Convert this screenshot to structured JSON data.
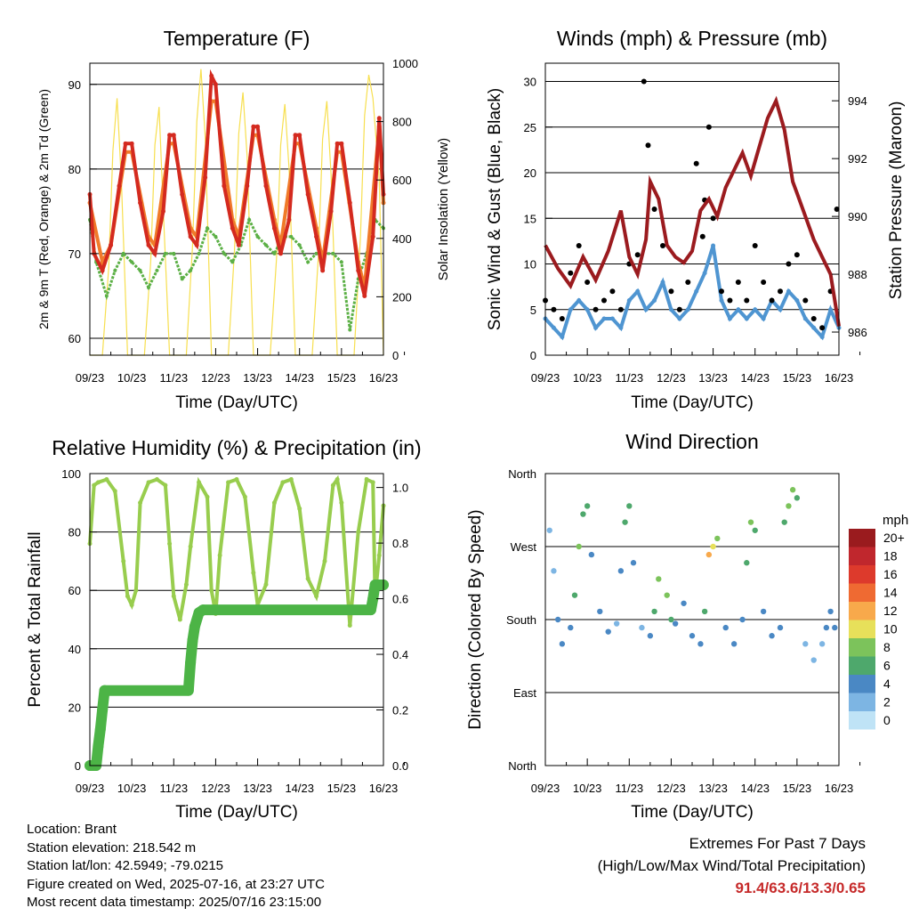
{
  "day_ticks": [
    "09/23",
    "10/23",
    "11/23",
    "12/23",
    "13/23",
    "14/23",
    "15/23",
    "16/23"
  ],
  "temperature": {
    "title": "Temperature (F)",
    "xlabel": "Time (Day/UTC)",
    "ylabel_left": "2m & 9m T (Red, Orange) & 2m Td (Green)",
    "ylabel_right": "Solar Insolation (Yellow)",
    "left_ticks": [
      "60",
      "70",
      "80",
      "90"
    ],
    "right_ticks": [
      "0",
      "200",
      "400",
      "600",
      "800",
      "1000"
    ]
  },
  "winds": {
    "title": "Winds (mph) & Pressure (mb)",
    "xlabel": "Time (Day/UTC)",
    "ylabel_left": "Sonic Wind & Gust (Blue, Black)",
    "ylabel_right": "Station Pressure (Maroon)",
    "left_ticks": [
      "0",
      "5",
      "10",
      "15",
      "20",
      "25",
      "30"
    ],
    "right_ticks": [
      "986",
      "988",
      "990",
      "992",
      "994"
    ]
  },
  "humidity": {
    "title": "Relative Humidity (%) & Precipitation (in)",
    "xlabel": "Time (Day/UTC)",
    "ylabel_left": "Percent & Total Rainfall",
    "left_ticks": [
      "0",
      "20",
      "40",
      "60",
      "80",
      "100"
    ],
    "right_ticks": [
      "0.0",
      "0.2",
      "0.4",
      "0.6",
      "0.8",
      "1.0"
    ]
  },
  "direction": {
    "title": "Wind Direction",
    "xlabel": "Time (Day/UTC)",
    "ylabel_left": "Direction (Colored By Speed)",
    "left_ticks": [
      "North",
      "East",
      "South",
      "West",
      "North"
    ],
    "legend_title": "mph",
    "legend_labels": [
      "20+",
      "18",
      "16",
      "14",
      "12",
      "10",
      "8",
      "6",
      "4",
      "2",
      "0"
    ],
    "legend_colors": [
      "#9a1b1e",
      "#c0272d",
      "#dd3a2c",
      "#ef6a32",
      "#f8a94b",
      "#e7e05a",
      "#7cc35b",
      "#4ea86c",
      "#4a88c4",
      "#7db5e3",
      "#bfe3f6"
    ]
  },
  "info": {
    "location": "Location: Brant",
    "elevation": "Station elevation: 218.542 m",
    "latlon": "Station lat/lon: 42.5949; -79.0215",
    "created": "Figure created on Wed, 2025-07-16, at 23:27 UTC",
    "recent": "Most recent data timestamp: 2025/07/16 23:15:00"
  },
  "extremes": {
    "line1": "Extremes For Past 7 Days",
    "line2": "(High/Low/Max Wind/Total Precipitation)",
    "values": "91.4/63.6/13.3/0.65"
  },
  "chart_data": [
    {
      "type": "line",
      "title": "Temperature (F)",
      "xlabel": "Time (Day/UTC)",
      "ylabel": "2m & 9m T (Red, Orange) & 2m Td (Green)",
      "ylabel_right": "Solar Insolation (Yellow)",
      "x_unit": "day",
      "xlim": [
        9,
        16
      ],
      "ylim": [
        58,
        92.5
      ],
      "ylim_right": [
        0,
        1000
      ],
      "colors": {
        "t2m": "#d42a1f",
        "t9m": "#f07a2a",
        "td": "#5cb046",
        "solar": "#f7df4f"
      },
      "series": [
        {
          "name": "2m T",
          "axis": "left",
          "x": [
            9.0,
            9.1,
            9.3,
            9.5,
            9.7,
            9.85,
            10.0,
            10.2,
            10.4,
            10.55,
            10.75,
            10.9,
            11.0,
            11.2,
            11.4,
            11.55,
            11.75,
            11.9,
            12.0,
            12.2,
            12.4,
            12.55,
            12.75,
            12.9,
            13.0,
            13.2,
            13.4,
            13.55,
            13.75,
            13.9,
            14.0,
            14.2,
            14.4,
            14.55,
            14.75,
            14.9,
            15.0,
            15.2,
            15.4,
            15.55,
            15.75,
            15.9,
            16.0
          ],
          "y": [
            77,
            70,
            68,
            71,
            78,
            83,
            83,
            76,
            71,
            70,
            75,
            84,
            84,
            77,
            72,
            71,
            79,
            91,
            90,
            78,
            73,
            71,
            78,
            85,
            85,
            78,
            73,
            70,
            74,
            84,
            84,
            77,
            72,
            68,
            75,
            83,
            83,
            76,
            68,
            65,
            72,
            86,
            77
          ]
        },
        {
          "name": "9m T",
          "axis": "left",
          "x": [
            9.0,
            9.3,
            9.5,
            9.85,
            10.0,
            10.4,
            10.55,
            10.9,
            11.0,
            11.4,
            11.55,
            11.9,
            12.0,
            12.4,
            12.55,
            12.9,
            13.0,
            13.4,
            13.55,
            13.9,
            14.0,
            14.4,
            14.55,
            14.9,
            15.0,
            15.4,
            15.55,
            15.9,
            16.0
          ],
          "y": [
            76,
            69,
            71,
            82,
            82,
            72,
            71,
            83,
            83,
            73,
            72,
            88,
            88,
            74,
            72,
            84,
            84,
            74,
            71,
            83,
            83,
            73,
            69,
            82,
            82,
            69,
            66,
            85,
            76
          ]
        },
        {
          "name": "2m Td",
          "axis": "left",
          "x": [
            9.0,
            9.15,
            9.4,
            9.6,
            9.8,
            10.0,
            10.2,
            10.4,
            10.6,
            10.8,
            11.0,
            11.2,
            11.4,
            11.6,
            11.8,
            12.0,
            12.2,
            12.4,
            12.6,
            12.8,
            13.0,
            13.2,
            13.4,
            13.6,
            13.8,
            14.0,
            14.2,
            14.4,
            14.6,
            14.8,
            15.0,
            15.2,
            15.4,
            15.6,
            15.8,
            16.0
          ],
          "y": [
            74,
            69,
            65,
            68,
            70,
            69,
            68,
            66,
            68,
            70,
            70,
            67,
            68,
            70,
            73,
            72,
            70,
            69,
            71,
            74,
            72,
            71,
            70,
            72,
            72,
            71,
            69,
            70,
            70,
            70,
            69,
            61,
            67,
            70,
            74,
            73
          ]
        },
        {
          "name": "Solar Insolation",
          "axis": "right",
          "x": [
            9.0,
            9.3,
            9.45,
            9.55,
            9.65,
            9.75,
            9.9,
            10.3,
            10.45,
            10.55,
            10.65,
            10.75,
            10.9,
            11.3,
            11.45,
            11.55,
            11.65,
            11.75,
            11.9,
            12.3,
            12.45,
            12.55,
            12.65,
            12.75,
            12.9,
            13.3,
            13.45,
            13.55,
            13.65,
            13.75,
            13.9,
            14.3,
            14.45,
            14.55,
            14.65,
            14.75,
            14.9,
            15.3,
            15.45,
            15.55,
            15.65,
            15.75,
            15.9,
            16.0
          ],
          "y": [
            0,
            0,
            300,
            700,
            880,
            600,
            0,
            0,
            320,
            720,
            850,
            500,
            0,
            0,
            380,
            800,
            980,
            750,
            0,
            0,
            360,
            760,
            900,
            680,
            0,
            0,
            330,
            720,
            860,
            640,
            0,
            0,
            340,
            740,
            870,
            620,
            0,
            0,
            400,
            820,
            960,
            880,
            600,
            0
          ]
        }
      ]
    },
    {
      "type": "line",
      "title": "Winds (mph) & Pressure (mb)",
      "xlabel": "Time (Day/UTC)",
      "ylabel": "Sonic Wind & Gust (Blue, Black)",
      "ylabel_right": "Station Pressure (Maroon)",
      "x_unit": "day",
      "xlim": [
        9,
        16
      ],
      "ylim": [
        0,
        32
      ],
      "ylim_right": [
        985.2,
        995.3
      ],
      "colors": {
        "wind": "#4f95d1",
        "gust": "#000000",
        "pressure": "#9b1b1f"
      },
      "series": [
        {
          "name": "Sonic Wind",
          "axis": "left",
          "x": [
            9.0,
            9.2,
            9.4,
            9.6,
            9.8,
            10.0,
            10.2,
            10.4,
            10.6,
            10.8,
            11.0,
            11.2,
            11.4,
            11.6,
            11.8,
            12.0,
            12.2,
            12.4,
            12.6,
            12.8,
            13.0,
            13.2,
            13.4,
            13.6,
            13.8,
            14.0,
            14.2,
            14.4,
            14.6,
            14.8,
            15.0,
            15.2,
            15.4,
            15.6,
            15.8,
            16.0
          ],
          "y": [
            4,
            3,
            2,
            5,
            6,
            5,
            3,
            4,
            4,
            3,
            6,
            7,
            5,
            6,
            8,
            5,
            4,
            5,
            7,
            9,
            12,
            6,
            4,
            5,
            4,
            5,
            4,
            6,
            5,
            7,
            6,
            4,
            3,
            2,
            5,
            3
          ]
        },
        {
          "name": "Gust",
          "axis": "left",
          "x": [
            9.0,
            9.2,
            9.4,
            9.6,
            9.8,
            10.0,
            10.2,
            10.4,
            10.6,
            10.8,
            11.0,
            11.2,
            11.35,
            11.45,
            11.6,
            11.8,
            12.0,
            12.2,
            12.4,
            12.6,
            12.75,
            12.8,
            12.9,
            13.0,
            13.2,
            13.4,
            13.6,
            13.8,
            14.0,
            14.2,
            14.4,
            14.6,
            14.8,
            15.0,
            15.2,
            15.4,
            15.6,
            15.8,
            15.95
          ],
          "y": [
            6,
            5,
            4,
            9,
            12,
            8,
            5,
            6,
            7,
            5,
            10,
            11,
            30,
            23,
            16,
            12,
            7,
            5,
            8,
            21,
            13,
            17,
            25,
            15,
            7,
            6,
            8,
            6,
            12,
            8,
            6,
            7,
            10,
            11,
            6,
            4,
            3,
            7,
            16
          ]
        },
        {
          "name": "Station Pressure",
          "axis": "right",
          "x": [
            9.0,
            9.3,
            9.6,
            9.9,
            10.2,
            10.5,
            10.8,
            11.0,
            11.2,
            11.4,
            11.5,
            11.7,
            11.9,
            12.1,
            12.3,
            12.5,
            12.7,
            12.9,
            13.1,
            13.3,
            13.5,
            13.7,
            13.9,
            14.1,
            14.3,
            14.5,
            14.7,
            14.9,
            15.0,
            15.2,
            15.4,
            15.6,
            15.8,
            16.0
          ],
          "y": [
            989.0,
            988.2,
            987.6,
            988.6,
            987.8,
            988.8,
            990.2,
            988.6,
            988.0,
            989.2,
            991.2,
            990.6,
            989.0,
            988.6,
            988.4,
            988.8,
            990.2,
            990.6,
            990.0,
            991.0,
            991.6,
            992.2,
            991.4,
            992.4,
            993.4,
            994.0,
            993.0,
            991.2,
            990.8,
            990.0,
            989.2,
            988.6,
            988.0,
            986.2
          ]
        }
      ]
    },
    {
      "type": "line",
      "title": "Relative Humidity (%) & Precipitation (in)",
      "xlabel": "Time (Day/UTC)",
      "ylabel": "Percent & Total Rainfall",
      "x_unit": "day",
      "xlim": [
        9,
        16
      ],
      "ylim": [
        0,
        100
      ],
      "ylim_right": [
        0.0,
        1.05
      ],
      "colors": {
        "rh": "#98cd4e",
        "precip": "#4cb446"
      },
      "series": [
        {
          "name": "Relative Humidity",
          "axis": "left",
          "x": [
            9.0,
            9.1,
            9.2,
            9.4,
            9.6,
            9.8,
            9.9,
            10.0,
            10.1,
            10.2,
            10.4,
            10.6,
            10.8,
            10.9,
            11.0,
            11.15,
            11.3,
            11.4,
            11.6,
            11.8,
            11.9,
            12.0,
            12.1,
            12.3,
            12.5,
            12.7,
            12.9,
            13.0,
            13.2,
            13.4,
            13.6,
            13.8,
            14.0,
            14.2,
            14.4,
            14.6,
            14.8,
            14.9,
            15.0,
            15.2,
            15.4,
            15.6,
            15.75,
            15.8,
            15.9,
            16.0
          ],
          "y": [
            76,
            96,
            97,
            98,
            94,
            70,
            58,
            55,
            60,
            90,
            97,
            98,
            96,
            76,
            58,
            50,
            62,
            75,
            97,
            92,
            60,
            52,
            72,
            97,
            98,
            92,
            66,
            55,
            62,
            90,
            97,
            98,
            88,
            64,
            58,
            70,
            96,
            98,
            90,
            48,
            80,
            98,
            97,
            58,
            72,
            89
          ]
        },
        {
          "name": "Total Precipitation",
          "axis": "right",
          "x": [
            9.0,
            9.15,
            9.2,
            9.25,
            9.3,
            9.35,
            11.35,
            11.4,
            11.45,
            11.5,
            11.6,
            11.7,
            15.7,
            15.75,
            15.8,
            16.0
          ],
          "y": [
            0.0,
            0.0,
            0.07,
            0.13,
            0.2,
            0.27,
            0.27,
            0.37,
            0.45,
            0.5,
            0.55,
            0.56,
            0.56,
            0.6,
            0.65,
            0.65
          ]
        }
      ]
    },
    {
      "type": "scatter",
      "title": "Wind Direction",
      "xlabel": "Time (Day/UTC)",
      "ylabel": "Direction (Colored By Speed)",
      "x_unit": "day",
      "xlim": [
        9,
        16
      ],
      "ylim": [
        0,
        360
      ],
      "yticks": [
        "North",
        "East",
        "South",
        "West",
        "North"
      ],
      "legend": "right",
      "series": [
        {
          "name": "Direction",
          "x": [
            9.1,
            9.2,
            9.3,
            9.4,
            9.6,
            9.7,
            9.8,
            9.9,
            10.0,
            10.1,
            10.3,
            10.5,
            10.7,
            10.8,
            10.9,
            11.0,
            11.1,
            11.3,
            11.5,
            11.6,
            11.7,
            11.9,
            12.0,
            12.1,
            12.3,
            12.5,
            12.7,
            12.8,
            12.9,
            13.0,
            13.1,
            13.3,
            13.5,
            13.7,
            13.8,
            13.9,
            14.0,
            14.2,
            14.4,
            14.6,
            14.7,
            14.8,
            14.9,
            15.0,
            15.2,
            15.4,
            15.6,
            15.7,
            15.8,
            15.9
          ],
          "y": [
            290,
            240,
            180,
            150,
            170,
            210,
            270,
            310,
            320,
            260,
            190,
            165,
            175,
            240,
            300,
            320,
            250,
            170,
            160,
            190,
            230,
            210,
            180,
            175,
            200,
            160,
            150,
            190,
            260,
            270,
            280,
            170,
            150,
            180,
            250,
            300,
            290,
            190,
            160,
            170,
            300,
            320,
            340,
            330,
            150,
            130,
            150,
            170,
            190,
            170
          ],
          "speed": [
            1,
            2,
            3,
            4,
            3,
            5,
            7,
            6,
            5,
            3,
            3,
            4,
            2,
            4,
            5,
            6,
            3,
            2,
            3,
            5,
            8,
            7,
            5,
            4,
            3,
            3,
            4,
            6,
            11,
            10,
            8,
            4,
            3,
            4,
            6,
            7,
            6,
            4,
            3,
            4,
            6,
            8,
            7,
            5,
            2,
            1,
            2,
            3,
            4,
            3
          ]
        }
      ]
    }
  ]
}
